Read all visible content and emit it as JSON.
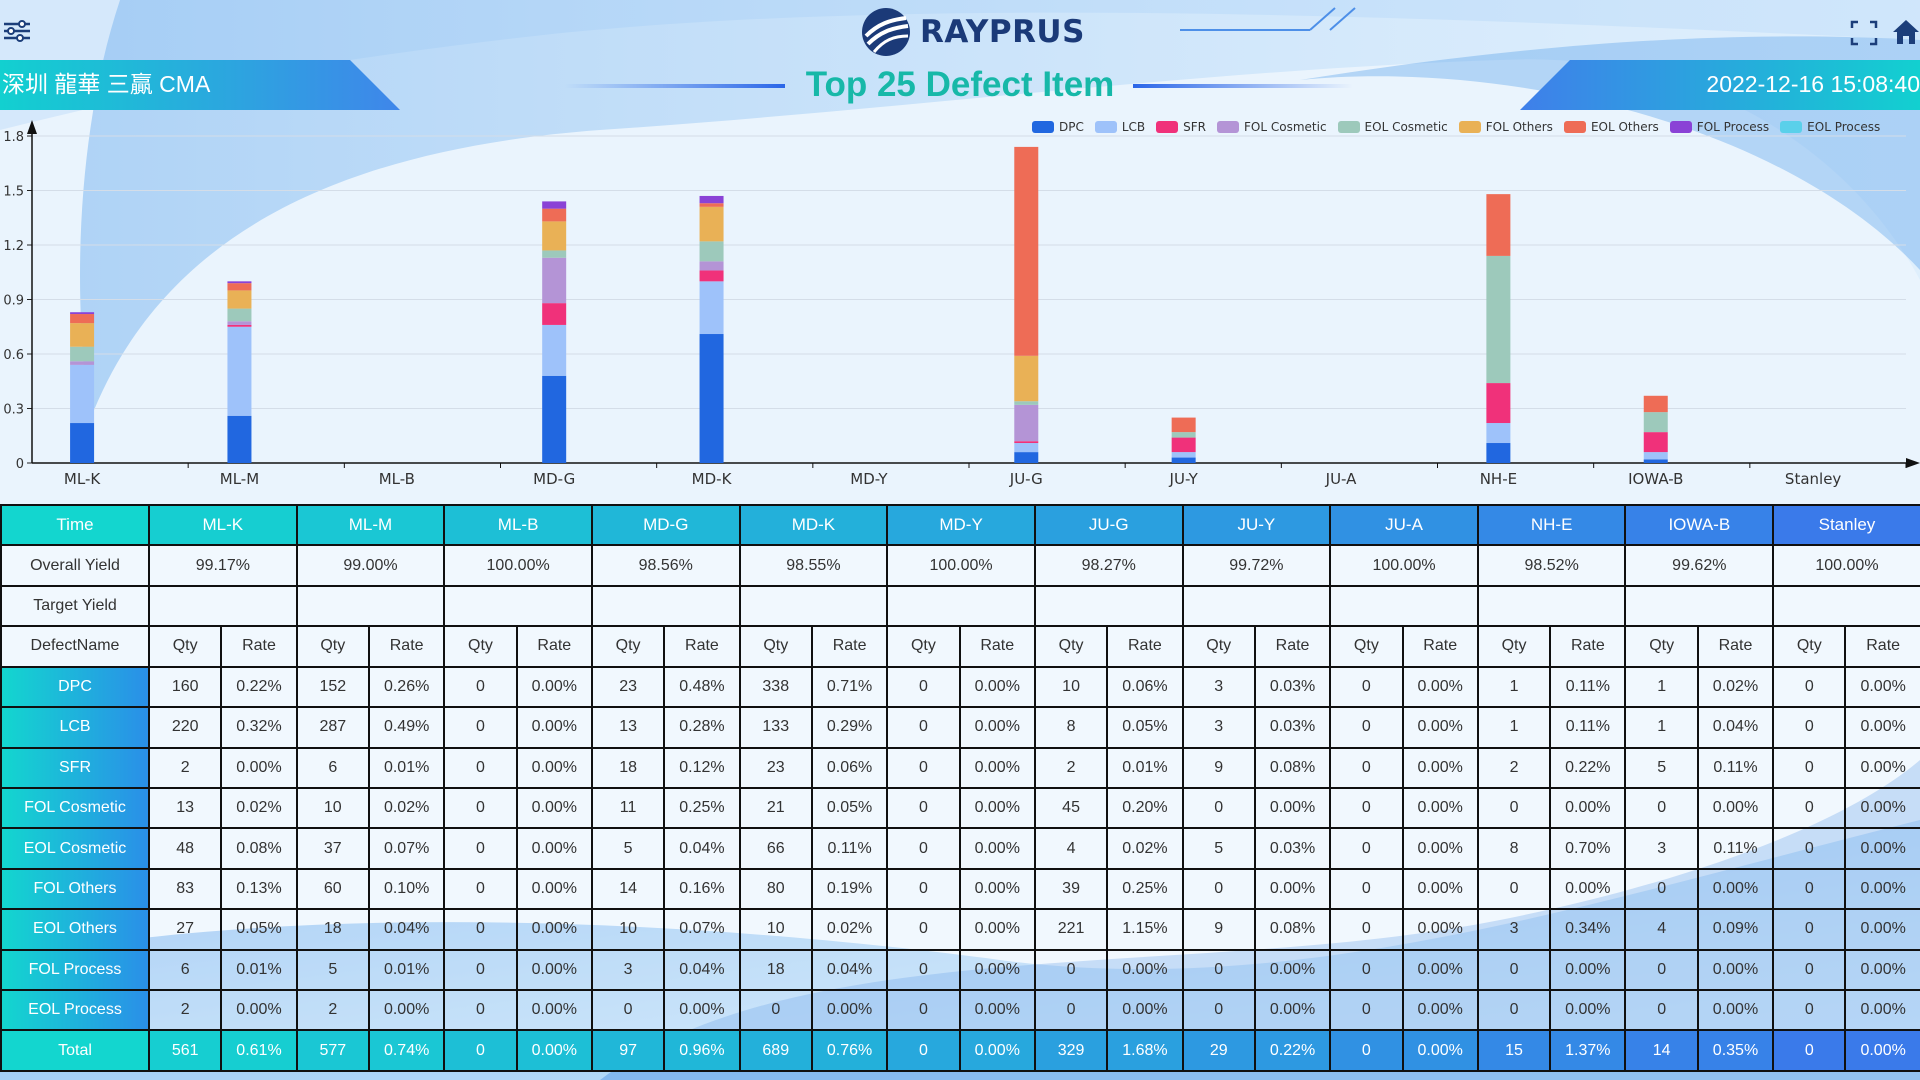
{
  "brand": {
    "name": "RAYPRUS"
  },
  "header": {
    "site": "深圳 龍華 三贏 CMA",
    "title": "Top 25 Defect Item",
    "datetime": "2022-12-16 15:08:40"
  },
  "icons": {
    "menu": "menu-sliders-icon",
    "fullscreen": "fullscreen-icon",
    "home": "home-icon",
    "logo": "globe-logo-icon"
  },
  "colors": {
    "accent": "#17b8a8",
    "header_cyan": "#13d6cf",
    "header_blue": "#2a8fe8"
  },
  "chart_data": {
    "type": "bar",
    "stacked": true,
    "categories": [
      "ML-K",
      "ML-M",
      "ML-B",
      "MD-G",
      "MD-K",
      "MD-Y",
      "JU-G",
      "JU-Y",
      "JU-A",
      "NH-E",
      "IOWA-B",
      "Stanley"
    ],
    "y_ticks": [
      "0",
      "0.3",
      "0.6",
      "0.9",
      "1.2",
      "1.5",
      "1.8"
    ],
    "ylim": [
      0,
      1.8
    ],
    "grid": true,
    "legend_position": "top-right",
    "series": [
      {
        "name": "DPC",
        "color": "#2167e0",
        "values": [
          0.22,
          0.26,
          0,
          0.48,
          0.71,
          0,
          0.06,
          0.03,
          0,
          0.11,
          0.02,
          0
        ]
      },
      {
        "name": "LCB",
        "color": "#9ec2fa",
        "values": [
          0.32,
          0.49,
          0,
          0.28,
          0.29,
          0,
          0.05,
          0.03,
          0,
          0.11,
          0.04,
          0
        ]
      },
      {
        "name": "SFR",
        "color": "#f0317a",
        "values": [
          0.0,
          0.01,
          0,
          0.12,
          0.06,
          0,
          0.01,
          0.08,
          0,
          0.22,
          0.11,
          0
        ]
      },
      {
        "name": "FOL Cosmetic",
        "color": "#b494d6",
        "values": [
          0.02,
          0.02,
          0,
          0.25,
          0.05,
          0,
          0.2,
          0.0,
          0,
          0.0,
          0.0,
          0
        ]
      },
      {
        "name": "EOL Cosmetic",
        "color": "#9dc9bb",
        "values": [
          0.08,
          0.07,
          0,
          0.04,
          0.11,
          0,
          0.02,
          0.03,
          0,
          0.7,
          0.11,
          0
        ]
      },
      {
        "name": "FOL Others",
        "color": "#e9b156",
        "values": [
          0.13,
          0.1,
          0,
          0.16,
          0.19,
          0,
          0.25,
          0.0,
          0,
          0.0,
          0.0,
          0
        ]
      },
      {
        "name": "EOL Others",
        "color": "#ee6c56",
        "values": [
          0.05,
          0.04,
          0,
          0.07,
          0.02,
          0,
          1.15,
          0.08,
          0,
          0.34,
          0.09,
          0
        ]
      },
      {
        "name": "FOL Process",
        "color": "#8a42d6",
        "values": [
          0.01,
          0.01,
          0,
          0.04,
          0.04,
          0,
          0.0,
          0.0,
          0,
          0.0,
          0.0,
          0
        ]
      },
      {
        "name": "EOL Process",
        "color": "#5ad0ea",
        "values": [
          0.0,
          0.0,
          0,
          0.0,
          0.0,
          0,
          0.0,
          0.0,
          0,
          0.0,
          0.0,
          0
        ]
      }
    ]
  },
  "table": {
    "time_label": "Time",
    "columns": [
      "ML-K",
      "ML-M",
      "ML-B",
      "MD-G",
      "MD-K",
      "MD-Y",
      "JU-G",
      "JU-Y",
      "JU-A",
      "NH-E",
      "IOWA-B",
      "Stanley"
    ],
    "overall_label": "Overall Yield",
    "overall": [
      "99.17%",
      "99.00%",
      "100.00%",
      "98.56%",
      "98.55%",
      "100.00%",
      "98.27%",
      "99.72%",
      "100.00%",
      "98.52%",
      "99.62%",
      "100.00%"
    ],
    "target_label": "Target Yield",
    "target": [
      "",
      "",
      "",
      "",
      "",
      "",
      "",
      "",
      "",
      "",
      "",
      ""
    ],
    "defectname_label": "DefectName",
    "qty_label": "Qty",
    "rate_label": "Rate",
    "rows": [
      {
        "name": "DPC",
        "cells": [
          [
            "160",
            "0.22%"
          ],
          [
            "152",
            "0.26%"
          ],
          [
            "0",
            "0.00%"
          ],
          [
            "23",
            "0.48%"
          ],
          [
            "338",
            "0.71%"
          ],
          [
            "0",
            "0.00%"
          ],
          [
            "10",
            "0.06%"
          ],
          [
            "3",
            "0.03%"
          ],
          [
            "0",
            "0.00%"
          ],
          [
            "1",
            "0.11%"
          ],
          [
            "1",
            "0.02%"
          ],
          [
            "0",
            "0.00%"
          ]
        ]
      },
      {
        "name": "LCB",
        "cells": [
          [
            "220",
            "0.32%"
          ],
          [
            "287",
            "0.49%"
          ],
          [
            "0",
            "0.00%"
          ],
          [
            "13",
            "0.28%"
          ],
          [
            "133",
            "0.29%"
          ],
          [
            "0",
            "0.00%"
          ],
          [
            "8",
            "0.05%"
          ],
          [
            "3",
            "0.03%"
          ],
          [
            "0",
            "0.00%"
          ],
          [
            "1",
            "0.11%"
          ],
          [
            "1",
            "0.04%"
          ],
          [
            "0",
            "0.00%"
          ]
        ]
      },
      {
        "name": "SFR",
        "cells": [
          [
            "2",
            "0.00%"
          ],
          [
            "6",
            "0.01%"
          ],
          [
            "0",
            "0.00%"
          ],
          [
            "18",
            "0.12%"
          ],
          [
            "23",
            "0.06%"
          ],
          [
            "0",
            "0.00%"
          ],
          [
            "2",
            "0.01%"
          ],
          [
            "9",
            "0.08%"
          ],
          [
            "0",
            "0.00%"
          ],
          [
            "2",
            "0.22%"
          ],
          [
            "5",
            "0.11%"
          ],
          [
            "0",
            "0.00%"
          ]
        ]
      },
      {
        "name": "FOL Cosmetic",
        "cells": [
          [
            "13",
            "0.02%"
          ],
          [
            "10",
            "0.02%"
          ],
          [
            "0",
            "0.00%"
          ],
          [
            "11",
            "0.25%"
          ],
          [
            "21",
            "0.05%"
          ],
          [
            "0",
            "0.00%"
          ],
          [
            "45",
            "0.20%"
          ],
          [
            "0",
            "0.00%"
          ],
          [
            "0",
            "0.00%"
          ],
          [
            "0",
            "0.00%"
          ],
          [
            "0",
            "0.00%"
          ],
          [
            "0",
            "0.00%"
          ]
        ]
      },
      {
        "name": "EOL Cosmetic",
        "cells": [
          [
            "48",
            "0.08%"
          ],
          [
            "37",
            "0.07%"
          ],
          [
            "0",
            "0.00%"
          ],
          [
            "5",
            "0.04%"
          ],
          [
            "66",
            "0.11%"
          ],
          [
            "0",
            "0.00%"
          ],
          [
            "4",
            "0.02%"
          ],
          [
            "5",
            "0.03%"
          ],
          [
            "0",
            "0.00%"
          ],
          [
            "8",
            "0.70%"
          ],
          [
            "3",
            "0.11%"
          ],
          [
            "0",
            "0.00%"
          ]
        ]
      },
      {
        "name": "FOL Others",
        "cells": [
          [
            "83",
            "0.13%"
          ],
          [
            "60",
            "0.10%"
          ],
          [
            "0",
            "0.00%"
          ],
          [
            "14",
            "0.16%"
          ],
          [
            "80",
            "0.19%"
          ],
          [
            "0",
            "0.00%"
          ],
          [
            "39",
            "0.25%"
          ],
          [
            "0",
            "0.00%"
          ],
          [
            "0",
            "0.00%"
          ],
          [
            "0",
            "0.00%"
          ],
          [
            "0",
            "0.00%"
          ],
          [
            "0",
            "0.00%"
          ]
        ]
      },
      {
        "name": "EOL Others",
        "cells": [
          [
            "27",
            "0.05%"
          ],
          [
            "18",
            "0.04%"
          ],
          [
            "0",
            "0.00%"
          ],
          [
            "10",
            "0.07%"
          ],
          [
            "10",
            "0.02%"
          ],
          [
            "0",
            "0.00%"
          ],
          [
            "221",
            "1.15%"
          ],
          [
            "9",
            "0.08%"
          ],
          [
            "0",
            "0.00%"
          ],
          [
            "3",
            "0.34%"
          ],
          [
            "4",
            "0.09%"
          ],
          [
            "0",
            "0.00%"
          ]
        ]
      },
      {
        "name": "FOL Process",
        "cells": [
          [
            "6",
            "0.01%"
          ],
          [
            "5",
            "0.01%"
          ],
          [
            "0",
            "0.00%"
          ],
          [
            "3",
            "0.04%"
          ],
          [
            "18",
            "0.04%"
          ],
          [
            "0",
            "0.00%"
          ],
          [
            "0",
            "0.00%"
          ],
          [
            "0",
            "0.00%"
          ],
          [
            "0",
            "0.00%"
          ],
          [
            "0",
            "0.00%"
          ],
          [
            "0",
            "0.00%"
          ],
          [
            "0",
            "0.00%"
          ]
        ]
      },
      {
        "name": "EOL Process",
        "cells": [
          [
            "2",
            "0.00%"
          ],
          [
            "2",
            "0.00%"
          ],
          [
            "0",
            "0.00%"
          ],
          [
            "0",
            "0.00%"
          ],
          [
            "0",
            "0.00%"
          ],
          [
            "0",
            "0.00%"
          ],
          [
            "0",
            "0.00%"
          ],
          [
            "0",
            "0.00%"
          ],
          [
            "0",
            "0.00%"
          ],
          [
            "0",
            "0.00%"
          ],
          [
            "0",
            "0.00%"
          ],
          [
            "0",
            "0.00%"
          ]
        ]
      }
    ],
    "total": {
      "name": "Total",
      "cells": [
        [
          "561",
          "0.61%"
        ],
        [
          "577",
          "0.74%"
        ],
        [
          "0",
          "0.00%"
        ],
        [
          "97",
          "0.96%"
        ],
        [
          "689",
          "0.76%"
        ],
        [
          "0",
          "0.00%"
        ],
        [
          "329",
          "1.68%"
        ],
        [
          "29",
          "0.22%"
        ],
        [
          "0",
          "0.00%"
        ],
        [
          "15",
          "1.37%"
        ],
        [
          "14",
          "0.35%"
        ],
        [
          "0",
          "0.00%"
        ]
      ]
    }
  }
}
